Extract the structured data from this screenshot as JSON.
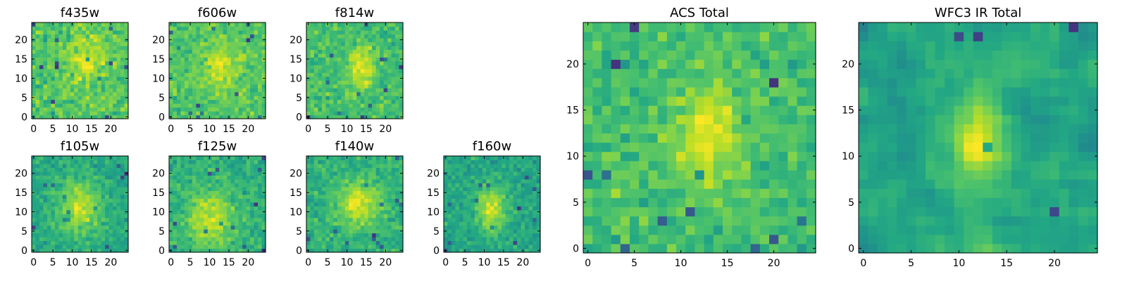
{
  "chart_data": [
    {
      "type": "heatmap",
      "title": "f435w",
      "xticks": [
        "0",
        "5",
        "10",
        "15",
        "20"
      ],
      "yticks": [
        "0",
        "5",
        "10",
        "15",
        "20"
      ],
      "xlim": [
        -0.5,
        24.5
      ],
      "ylim": [
        -0.5,
        24.5
      ],
      "grid_size": 25,
      "colormap": "viridis",
      "blob": {
        "center": [
          14,
          15
        ],
        "sigma": [
          3,
          4
        ],
        "amplitude": 0.25
      },
      "noise_seed": 11
    },
    {
      "type": "heatmap",
      "title": "f606w",
      "xticks": [
        "0",
        "5",
        "10",
        "15",
        "20"
      ],
      "yticks": [
        "0",
        "5",
        "10",
        "15",
        "20"
      ],
      "xlim": [
        -0.5,
        24.5
      ],
      "ylim": [
        -0.5,
        24.5
      ],
      "grid_size": 25,
      "colormap": "viridis",
      "blob": {
        "center": [
          13,
          13
        ],
        "sigma": [
          3,
          4
        ],
        "amplitude": 0.3
      },
      "noise_seed": 23
    },
    {
      "type": "heatmap",
      "title": "f814w",
      "xticks": [
        "0",
        "5",
        "10",
        "15",
        "20"
      ],
      "yticks": [
        "0",
        "5",
        "10",
        "15",
        "20"
      ],
      "xlim": [
        -0.5,
        24.5
      ],
      "ylim": [
        -0.5,
        24.5
      ],
      "grid_size": 25,
      "colormap": "viridis",
      "blob": {
        "center": [
          14,
          13
        ],
        "sigma": [
          2.5,
          4
        ],
        "amplitude": 0.35
      },
      "noise_seed": 37
    },
    {
      "type": "heatmap",
      "title": "f105w",
      "xticks": [
        "0",
        "5",
        "10",
        "15",
        "20"
      ],
      "yticks": [
        "0",
        "5",
        "10",
        "15",
        "20"
      ],
      "xlim": [
        -0.5,
        24.5
      ],
      "ylim": [
        -0.5,
        24.5
      ],
      "grid_size": 25,
      "colormap": "viridis",
      "blob": {
        "center": [
          12,
          11
        ],
        "sigma": [
          4,
          5
        ],
        "amplitude": 0.45
      },
      "noise_seed": 41
    },
    {
      "type": "heatmap",
      "title": "f125w",
      "xticks": [
        "0",
        "5",
        "10",
        "15",
        "20"
      ],
      "yticks": [
        "0",
        "5",
        "10",
        "15",
        "20"
      ],
      "xlim": [
        -0.5,
        24.5
      ],
      "ylim": [
        -0.5,
        24.5
      ],
      "grid_size": 25,
      "colormap": "viridis",
      "blob": {
        "center": [
          10,
          8
        ],
        "sigma": [
          4,
          5
        ],
        "amplitude": 0.4
      },
      "noise_seed": 53
    },
    {
      "type": "heatmap",
      "title": "f140w",
      "xticks": [
        "0",
        "5",
        "10",
        "15",
        "20"
      ],
      "yticks": [
        "0",
        "5",
        "10",
        "15",
        "20"
      ],
      "xlim": [
        -0.5,
        24.5
      ],
      "ylim": [
        -0.5,
        24.5
      ],
      "grid_size": 25,
      "colormap": "viridis",
      "blob": {
        "center": [
          13,
          12
        ],
        "sigma": [
          4,
          4
        ],
        "amplitude": 0.45
      },
      "noise_seed": 67
    },
    {
      "type": "heatmap",
      "title": "f160w",
      "xticks": [
        "0",
        "5",
        "10",
        "15",
        "20"
      ],
      "yticks": [
        "0",
        "5",
        "10",
        "15",
        "20"
      ],
      "xlim": [
        -0.5,
        24.5
      ],
      "ylim": [
        -0.5,
        24.5
      ],
      "grid_size": 25,
      "colormap": "viridis",
      "blob": {
        "center": [
          12,
          11
        ],
        "sigma": [
          2.5,
          4
        ],
        "amplitude": 0.5
      },
      "noise_seed": 79
    },
    {
      "type": "heatmap",
      "title": "ACS Total",
      "xticks": [
        "0",
        "5",
        "10",
        "15",
        "20"
      ],
      "yticks": [
        "0",
        "5",
        "10",
        "15",
        "20"
      ],
      "xlim": [
        -0.5,
        24.5
      ],
      "ylim": [
        -0.5,
        24.5
      ],
      "grid_size": 25,
      "colormap": "viridis",
      "blob": {
        "center": [
          13,
          12
        ],
        "sigma": [
          2.5,
          4
        ],
        "amplitude": 0.35
      },
      "noise_seed": 91
    },
    {
      "type": "heatmap",
      "title": "WFC3 IR Total",
      "xticks": [
        "0",
        "5",
        "10",
        "15",
        "20"
      ],
      "yticks": [
        "0",
        "5",
        "10",
        "15",
        "20"
      ],
      "xlim": [
        -0.5,
        24.5
      ],
      "ylim": [
        -0.5,
        24.5
      ],
      "grid_size": 25,
      "colormap": "viridis",
      "blob": {
        "center": [
          12,
          12
        ],
        "sigma": [
          2,
          3.5
        ],
        "amplitude": 0.55
      },
      "noise_seed": 103,
      "smooth": true
    }
  ]
}
